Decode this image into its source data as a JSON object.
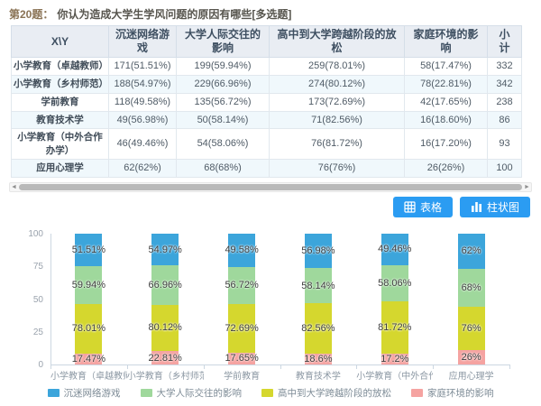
{
  "question": {
    "number": "第20题：",
    "text": "你认为造成大学生学风问题的原因有哪些[多选题]"
  },
  "table": {
    "headers": [
      "X\\Y",
      "沉迷网络游戏",
      "大学人际交往的影响",
      "高中到大学跨越阶段的放松",
      "家庭环境的影响",
      "小计"
    ],
    "rows": [
      {
        "label": "小学教育（卓越教师）",
        "cells": [
          "171(51.51%)",
          "199(59.94%)",
          "259(78.01%)",
          "58(17.47%)",
          "332"
        ]
      },
      {
        "label": "小学教育（乡村师范）",
        "cells": [
          "188(54.97%)",
          "229(66.96%)",
          "274(80.12%)",
          "78(22.81%)",
          "342"
        ]
      },
      {
        "label": "学前教育",
        "cells": [
          "118(49.58%)",
          "135(56.72%)",
          "173(72.69%)",
          "42(17.65%)",
          "238"
        ]
      },
      {
        "label": "教育技术学",
        "cells": [
          "49(56.98%)",
          "50(58.14%)",
          "71(82.56%)",
          "16(18.60%)",
          "86"
        ]
      },
      {
        "label": "小学教育（中外合作办学）",
        "cells": [
          "46(49.46%)",
          "54(58.06%)",
          "76(81.72%)",
          "16(17.20%)",
          "93"
        ]
      },
      {
        "label": "应用心理学",
        "cells": [
          "62(62%)",
          "68(68%)",
          "76(76%)",
          "26(26%)",
          "100"
        ]
      }
    ]
  },
  "scrollbar": {
    "left_arrow": "◄",
    "right_arrow": "►"
  },
  "toolbar": {
    "table_button": "表格",
    "bar_chart_button": "柱状图"
  },
  "chart_data": {
    "type": "bar",
    "variant": "stacked-percent",
    "categories": [
      "小学教育（卓越教师）",
      "小学教育（乡村师范）",
      "学前教育",
      "教育技术学",
      "小学教育（中外合作...",
      "应用心理学"
    ],
    "series": [
      {
        "name": "沉迷网络游戏",
        "color": "#3ca5db",
        "values": [
          51.51,
          54.97,
          49.58,
          56.98,
          49.46,
          62
        ],
        "labels": [
          "51.51%",
          "54.97%",
          "49.58%",
          "56.98%",
          "49.46%",
          "62%"
        ]
      },
      {
        "name": "大学人际交往的影响",
        "color": "#9fd89c",
        "values": [
          59.94,
          66.96,
          56.72,
          58.14,
          58.06,
          68
        ],
        "labels": [
          "59.94%",
          "66.96%",
          "56.72%",
          "58.14%",
          "58.06%",
          "68%"
        ]
      },
      {
        "name": "高中到大学跨越阶段的放松",
        "color": "#d5d72e",
        "values": [
          78.01,
          80.12,
          72.69,
          82.56,
          81.72,
          76
        ],
        "labels": [
          "78.01%",
          "80.12%",
          "72.69%",
          "82.56%",
          "81.72%",
          "76%"
        ]
      },
      {
        "name": "家庭环境的影响",
        "color": "#f5a3a1",
        "values": [
          17.47,
          22.81,
          17.65,
          18.6,
          17.2,
          26
        ],
        "labels": [
          "17.47%",
          "22.81%",
          "17.65%",
          "18.6%",
          "17.2%",
          "26%"
        ]
      }
    ],
    "yticks": [
      0,
      25,
      50,
      75,
      100
    ],
    "ylim": [
      0,
      100
    ],
    "grid": false,
    "legend_position": "bottom"
  }
}
